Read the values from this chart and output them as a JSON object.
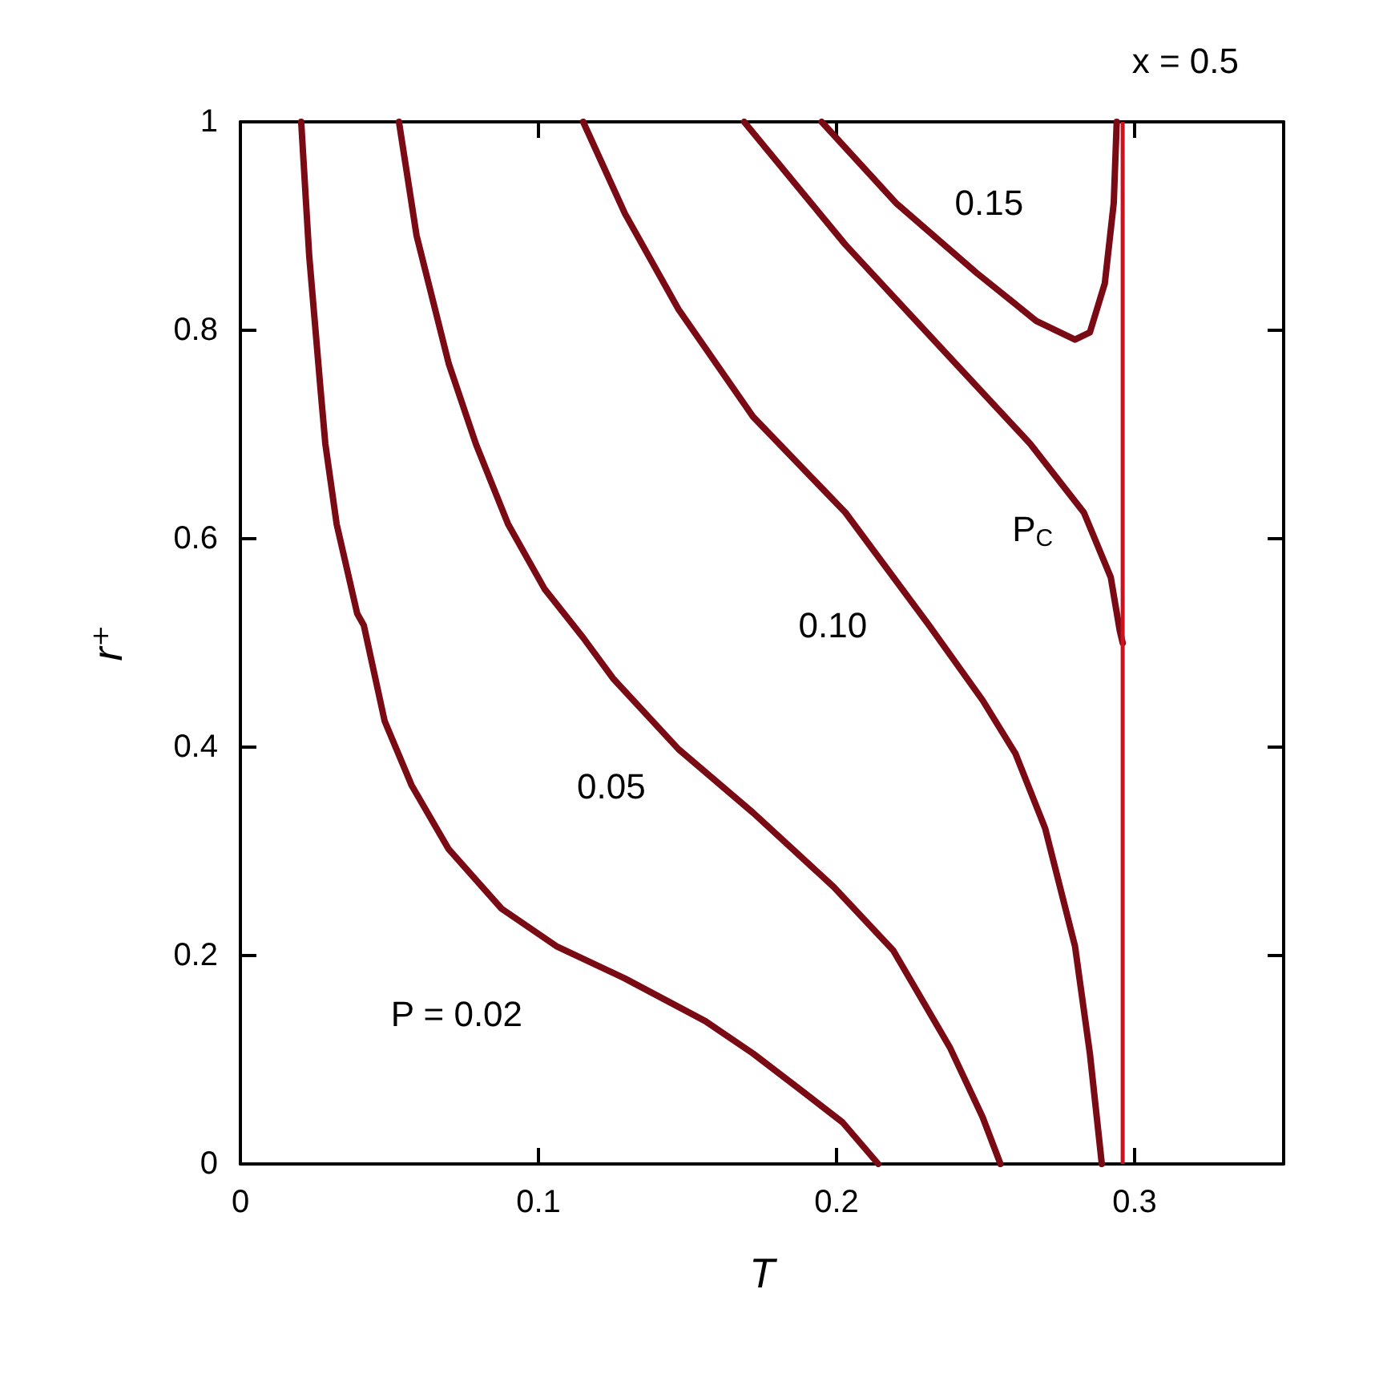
{
  "chart_data": {
    "type": "line",
    "title": "x = 0.5",
    "xlabel": "T",
    "ylabel": "r⁺",
    "xlim": [
      0,
      0.35
    ],
    "xticks": [
      0,
      0.1,
      0.2,
      0.3
    ],
    "ylim": [
      0,
      1
    ],
    "yticks": [
      0,
      0.2,
      0.4,
      0.6,
      0.8,
      1
    ],
    "grid": false,
    "legend": false,
    "marker": "none",
    "line_style": "solid",
    "series": [
      {
        "name": "P = 0.02",
        "color": "#7a0a14",
        "x": [
          0.0204,
          0.0231,
          0.0269,
          0.0285,
          0.0323,
          0.0392,
          0.0414,
          0.0484,
          0.0575,
          0.0699,
          0.0876,
          0.106,
          0.129,
          0.156,
          0.172,
          0.188,
          0.202,
          0.214
        ],
        "values": [
          1,
          0.871,
          0.743,
          0.691,
          0.614,
          0.528,
          0.517,
          0.425,
          0.363,
          0.302,
          0.245,
          0.209,
          0.178,
          0.137,
          0.106,
          0.071,
          0.04,
          0
        ]
      },
      {
        "name": "0.05",
        "color": "#7a0a14",
        "x": [
          0.0532,
          0.0591,
          0.0699,
          0.079,
          0.0898,
          0.102,
          0.115,
          0.125,
          0.147,
          0.172,
          0.199,
          0.219,
          0.238,
          0.249,
          0.255
        ],
        "values": [
          1,
          0.891,
          0.768,
          0.691,
          0.614,
          0.552,
          0.505,
          0.466,
          0.398,
          0.337,
          0.266,
          0.205,
          0.112,
          0.045,
          0
        ]
      },
      {
        "name": "0.10",
        "color": "#7a0a14",
        "x": [
          0.115,
          0.129,
          0.147,
          0.172,
          0.203,
          0.231,
          0.249,
          0.26,
          0.27,
          0.28,
          0.285,
          0.289
        ],
        "values": [
          1,
          0.912,
          0.82,
          0.717,
          0.625,
          0.517,
          0.445,
          0.394,
          0.322,
          0.209,
          0.106,
          0
        ]
      },
      {
        "name": "P$_{C}$",
        "color": "#7a0a14",
        "x": [
          0.169,
          0.203,
          0.238,
          0.265,
          0.283,
          0.292,
          0.295,
          0.296
        ],
        "values": [
          1,
          0.882,
          0.774,
          0.691,
          0.625,
          0.563,
          0.512,
          0.5
        ]
      },
      {
        "name": "0.15",
        "color": "#7a0a14",
        "x": [
          0.195,
          0.22,
          0.247,
          0.267,
          0.28,
          0.285,
          0.29,
          0.293,
          0.294
        ],
        "values": [
          1,
          0.922,
          0.855,
          0.809,
          0.791,
          0.798,
          0.845,
          0.922,
          1
        ]
      }
    ],
    "ref_lines": [
      {
        "axis": "x",
        "value": 0.296,
        "color": "#d0101c",
        "line_style": "solid"
      }
    ]
  }
}
